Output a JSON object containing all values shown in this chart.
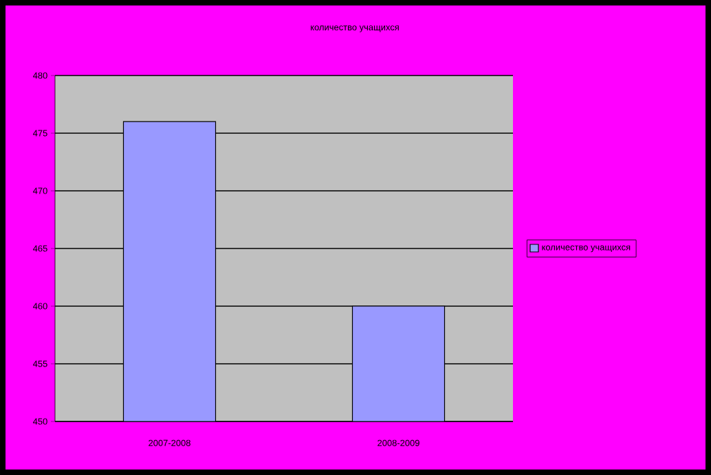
{
  "chart_data": {
    "type": "bar",
    "title": "количество учащихся",
    "categories": [
      "2007-2008",
      "2008-2009"
    ],
    "series": [
      {
        "name": "количество учащихся",
        "color": "#9999ff",
        "values": [
          476,
          460
        ]
      }
    ],
    "ylim": [
      450,
      480
    ],
    "yticks": [
      450,
      455,
      460,
      465,
      470,
      475,
      480
    ],
    "grid": "y",
    "legend": "right"
  }
}
